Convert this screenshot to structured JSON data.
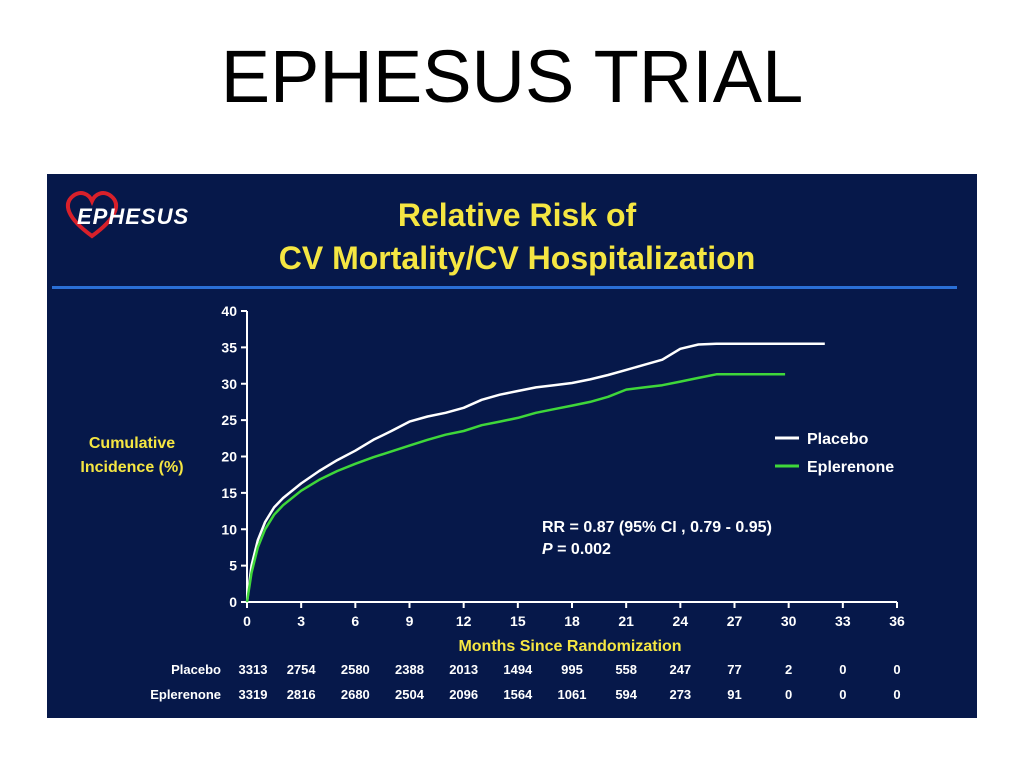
{
  "page": {
    "title": "EPHESUS TRIAL"
  },
  "logo": {
    "text": "EPHESUS",
    "icon": "heart-logo-icon",
    "heart_color": "#d8202a"
  },
  "slide": {
    "title_line1": "Relative Risk of",
    "title_line2": "CV Mortality/CV Hospitalization",
    "background": "#06184a",
    "title_color": "#f5e642"
  },
  "chart_data": {
    "type": "line",
    "xlabel": "Months Since Randomization",
    "ylabel_line1": "Cumulative",
    "ylabel_line2": "Incidence (%)",
    "xlim": [
      0,
      36
    ],
    "ylim": [
      0,
      40
    ],
    "x_ticks": [
      0,
      3,
      6,
      9,
      12,
      15,
      18,
      21,
      24,
      27,
      30,
      33,
      36
    ],
    "y_ticks": [
      0,
      5,
      10,
      15,
      20,
      25,
      30,
      35,
      40
    ],
    "grid": false,
    "legend_position": "right",
    "series": [
      {
        "name": "Placebo",
        "color": "#ffffff",
        "points": [
          [
            0,
            0
          ],
          [
            0.25,
            5
          ],
          [
            0.6,
            8.5
          ],
          [
            1,
            11
          ],
          [
            1.5,
            13
          ],
          [
            2,
            14.3
          ],
          [
            3,
            16.3
          ],
          [
            4,
            18
          ],
          [
            5,
            19.5
          ],
          [
            6,
            20.8
          ],
          [
            7,
            22.3
          ],
          [
            8,
            23.5
          ],
          [
            9,
            24.8
          ],
          [
            10,
            25.5
          ],
          [
            11,
            26
          ],
          [
            12,
            26.7
          ],
          [
            13,
            27.8
          ],
          [
            14,
            28.5
          ],
          [
            15,
            29
          ],
          [
            16,
            29.5
          ],
          [
            17,
            29.8
          ],
          [
            18,
            30.1
          ],
          [
            19,
            30.6
          ],
          [
            20,
            31.2
          ],
          [
            21,
            31.9
          ],
          [
            22,
            32.6
          ],
          [
            23,
            33.3
          ],
          [
            24,
            34.8
          ],
          [
            25,
            35.4
          ],
          [
            26,
            35.5
          ],
          [
            28,
            35.5
          ],
          [
            30,
            35.5
          ],
          [
            32,
            35.5
          ]
        ]
      },
      {
        "name": "Eplerenone",
        "color": "#3fd73a",
        "points": [
          [
            0,
            0
          ],
          [
            0.25,
            4
          ],
          [
            0.6,
            7.5
          ],
          [
            1,
            10
          ],
          [
            1.5,
            12
          ],
          [
            2,
            13.3
          ],
          [
            3,
            15.3
          ],
          [
            4,
            16.8
          ],
          [
            5,
            18
          ],
          [
            6,
            19
          ],
          [
            7,
            19.9
          ],
          [
            8,
            20.7
          ],
          [
            9,
            21.5
          ],
          [
            10,
            22.3
          ],
          [
            11,
            23
          ],
          [
            12,
            23.5
          ],
          [
            13,
            24.3
          ],
          [
            14,
            24.8
          ],
          [
            15,
            25.3
          ],
          [
            16,
            26
          ],
          [
            17,
            26.5
          ],
          [
            18,
            27
          ],
          [
            19,
            27.5
          ],
          [
            20,
            28.2
          ],
          [
            21,
            29.2
          ],
          [
            22,
            29.5
          ],
          [
            23,
            29.8
          ],
          [
            24,
            30.3
          ],
          [
            25,
            30.8
          ],
          [
            26,
            31.3
          ],
          [
            28,
            31.3
          ],
          [
            29.8,
            31.3
          ]
        ]
      }
    ],
    "annotation_line1": "RR = 0.87 (95% CI , 0.79 - 0.95)",
    "annotation_p_symbol": "P",
    "annotation_p_value": "= 0.002",
    "risk_table": {
      "label_placebo": "Placebo",
      "label_eplerenone": "Eplerenone",
      "placebo": [
        3313,
        2754,
        2580,
        2388,
        2013,
        1494,
        995,
        558,
        247,
        77,
        2,
        0,
        0
      ],
      "eplerenone": [
        3319,
        2816,
        2680,
        2504,
        2096,
        1564,
        1061,
        594,
        273,
        91,
        0,
        0,
        0
      ]
    },
    "axis_label_color": "#f5e642"
  }
}
